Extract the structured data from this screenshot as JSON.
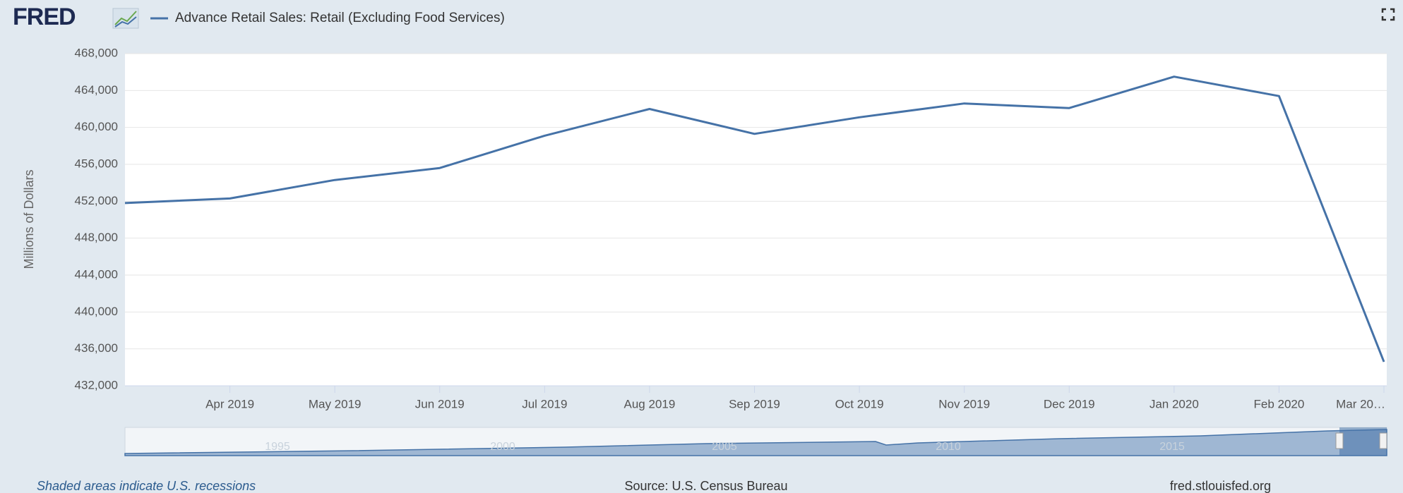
{
  "logo": "FRED",
  "chart_data": {
    "type": "line",
    "y_label": "Millions of Dollars",
    "categories": [
      null,
      "Apr 2019",
      "May 2019",
      "Jun 2019",
      "Jul 2019",
      "Aug 2019",
      "Sep 2019",
      "Oct 2019",
      "Nov 2019",
      "Dec 2019",
      "Jan 2020",
      "Feb 2020",
      "Mar 20…"
    ],
    "series": [
      {
        "name": "Advance Retail Sales: Retail (Excluding Food Services)",
        "color": "#4572a7",
        "values": [
          451800,
          452300,
          454300,
          455600,
          459100,
          462000,
          459300,
          461100,
          462600,
          462100,
          465500,
          463400,
          434600
        ]
      }
    ],
    "ylim": [
      432000,
      468000
    ],
    "yticks": [
      {
        "value": 432000,
        "label": "432,000"
      },
      {
        "value": 436000,
        "label": "436,000"
      },
      {
        "value": 440000,
        "label": "440,000"
      },
      {
        "value": 444000,
        "label": "444,000"
      },
      {
        "value": 448000,
        "label": "448,000"
      },
      {
        "value": 452000,
        "label": "452,000"
      },
      {
        "value": 456000,
        "label": "456,000"
      },
      {
        "value": 460000,
        "label": "460,000"
      },
      {
        "value": 464000,
        "label": "464,000"
      },
      {
        "value": 468000,
        "label": "468,000"
      }
    ],
    "grid": true
  },
  "navigator": {
    "labels": [
      "1995",
      "2000",
      "2005",
      "2010",
      "2015"
    ]
  },
  "footer": {
    "note": "Shaded areas indicate U.S. recessions",
    "source": "Source: U.S. Census Bureau",
    "site": "fred.stlouisfed.org"
  }
}
